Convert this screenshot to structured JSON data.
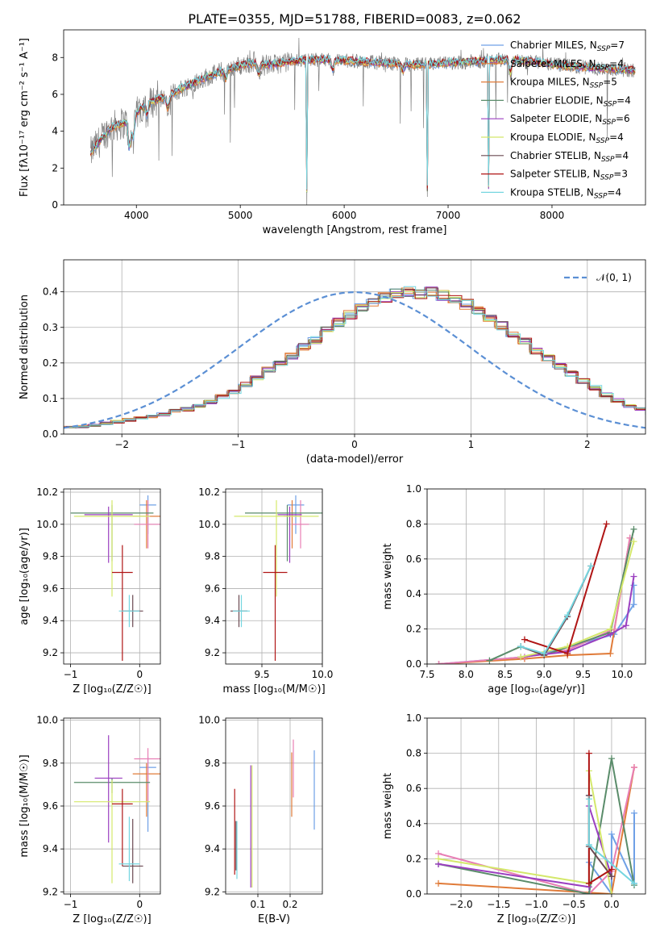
{
  "title": "PLATE=0355, MJD=51788, FIBERID=0083, z=0.062",
  "colors": {
    "Chabrier MILES": "#6fa0e6",
    "Salpeter MILES": "#e07b39",
    "Kroupa MILES": "#e07b39",
    "Chabrier ELODIE": "#5a8c6a",
    "Salpeter ELODIE": "#9b3fc0",
    "Kroupa ELODIE": "#d4e86b",
    "Chabrier STELIB": "#6b4a52",
    "Salpeter STELIB": "#b01515",
    "Kroupa STELIB": "#74d6e0",
    "data": "#808080",
    "gaussian": "#5b8fd4",
    "pink": "#e87fb5"
  },
  "chart_data": [
    {
      "type": "line",
      "panel": "spectrum",
      "title": "PLATE=0355, MJD=51788, FIBERID=0083, z=0.062",
      "xlabel": "wavelength [Angstrom, rest frame]",
      "ylabel": "Flux [fλ10⁻¹⁷ erg cm⁻² s⁻¹ A⁻¹]",
      "xlim": [
        3300,
        8900
      ],
      "ylim": [
        0,
        9.5
      ],
      "xticks": [
        "4000",
        "5000",
        "6000",
        "7000",
        "8000"
      ],
      "yticks": [
        "0",
        "2",
        "4",
        "6",
        "8"
      ],
      "legend": [
        "Chabrier MILES, N_SSP=7",
        "Salpeter MILES, N_SSP=4",
        "Kroupa MILES, N_SSP=5",
        "Chabrier ELODIE, N_SSP=4",
        "Salpeter ELODIE, N_SSP=6",
        "Kroupa ELODIE, N_SSP=4",
        "Chabrier STELIB, N_SSP=4",
        "Salpeter STELIB, N_SSP=3",
        "Kroupa STELIB, N_SSP=4"
      ],
      "legend_labels": [
        {
          "name": "Chabrier MILES, N",
          "sub": "SSP",
          "tail": "=7"
        },
        {
          "name": "Salpeter MILES, N",
          "sub": "SSP",
          "tail": "=4"
        },
        {
          "name": "Kroupa MILES, N",
          "sub": "SSP",
          "tail": "=5"
        },
        {
          "name": "Chabrier ELODIE, N",
          "sub": "SSP",
          "tail": "=4"
        },
        {
          "name": "Salpeter ELODIE, N",
          "sub": "SSP",
          "tail": "=6"
        },
        {
          "name": "Kroupa ELODIE, N",
          "sub": "SSP",
          "tail": "=4"
        },
        {
          "name": "Chabrier STELIB, N",
          "sub": "SSP",
          "tail": "=4"
        },
        {
          "name": "Salpeter STELIB, N",
          "sub": "SSP",
          "tail": "=3"
        },
        {
          "name": "Kroupa STELIB, N",
          "sub": "SSP",
          "tail": "=4"
        }
      ],
      "legend_position": "right",
      "continuum": {
        "x": [
          3560,
          3650,
          3750,
          3850,
          3950,
          4050,
          4150,
          4300,
          4500,
          4700,
          4900,
          5100,
          5300,
          5500,
          5800,
          6100,
          6400,
          6700,
          7000,
          7300,
          7600,
          7900,
          8200,
          8500,
          8800
        ],
        "y": [
          2.8,
          3.5,
          4.2,
          4.4,
          4.6,
          5.3,
          5.6,
          5.9,
          6.5,
          7.0,
          7.4,
          7.7,
          7.6,
          7.8,
          7.9,
          7.8,
          7.7,
          7.6,
          7.7,
          7.8,
          7.9,
          7.7,
          7.5,
          7.4,
          7.3
        ]
      },
      "absorption_features": [
        {
          "x": 3934,
          "depth": 1.6
        },
        {
          "x": 3969,
          "depth": 1.2
        },
        {
          "x": 4101,
          "depth": 0.6
        },
        {
          "x": 4304,
          "depth": 0.8
        },
        {
          "x": 4861,
          "depth": 0.5
        },
        {
          "x": 5175,
          "depth": 0.6
        },
        {
          "x": 5640,
          "depth": 7.8
        },
        {
          "x": 5890,
          "depth": 0.6
        },
        {
          "x": 6563,
          "depth": 0.4
        },
        {
          "x": 6800,
          "depth": 7.5
        },
        {
          "x": 7390,
          "depth": 7.6
        },
        {
          "x": 7600,
          "depth": 0.8
        }
      ]
    },
    {
      "type": "line",
      "panel": "residual-histogram",
      "xlabel": "(data-model)/error",
      "ylabel": "Normed distribution",
      "xlim": [
        -2.5,
        2.5
      ],
      "ylim": [
        0,
        0.49
      ],
      "xticks": [
        "−2",
        "−1",
        "0",
        "1",
        "2"
      ],
      "yticks": [
        "0.0",
        "0.1",
        "0.2",
        "0.3",
        "0.4"
      ],
      "legend": [
        "𝒩(0, 1)"
      ],
      "legend_position": "top-right",
      "bin_width": 0.1,
      "bin_start": -2.5,
      "base_values": [
        0.02,
        0.02,
        0.025,
        0.03,
        0.035,
        0.04,
        0.045,
        0.05,
        0.055,
        0.065,
        0.07,
        0.08,
        0.09,
        0.105,
        0.12,
        0.14,
        0.16,
        0.18,
        0.2,
        0.22,
        0.245,
        0.265,
        0.29,
        0.315,
        0.335,
        0.355,
        0.37,
        0.385,
        0.395,
        0.4,
        0.395,
        0.4,
        0.39,
        0.38,
        0.365,
        0.345,
        0.325,
        0.305,
        0.28,
        0.26,
        0.235,
        0.215,
        0.19,
        0.17,
        0.15,
        0.13,
        0.11,
        0.095,
        0.08,
        0.07,
        0.06,
        0.05,
        0.045,
        0.04,
        0.035,
        0.03,
        0.025,
        0.02,
        0.02,
        0.02
      ],
      "gaussian": {
        "mean": 0,
        "sigma": 1
      }
    },
    {
      "type": "scatter",
      "panel": "age-vs-Z",
      "xlabel": "Z [log₁₀(Z/Z☉)]",
      "ylabel": "age  [log₁₀(age/yr)]",
      "xlim": [
        -1.1,
        0.3
      ],
      "ylim": [
        9.13,
        10.22
      ],
      "xticks": [
        "−1",
        "0"
      ],
      "yticks": [
        "9.2",
        "9.4",
        "9.6",
        "9.8",
        "10.0",
        "10.2"
      ],
      "points": [
        {
          "x": 0.12,
          "y": 10.12,
          "xerr": 0.12,
          "yerr": [
            0.18,
            0.06
          ],
          "color": "#6fa0e6"
        },
        {
          "x": 0.1,
          "y": 10.05,
          "xerr": 0.2,
          "yerr": [
            0.2,
            0.1
          ],
          "color": "#e07b39"
        },
        {
          "x": 0.12,
          "y": 10.0,
          "xerr": 0.2,
          "yerr": [
            0.15,
            0.15
          ],
          "color": "#e87fb5"
        },
        {
          "x": -0.4,
          "y": 10.07,
          "xerr": 0.6,
          "yerr": [
            0.3,
            0.05
          ],
          "color": "#5a8c6a"
        },
        {
          "x": -0.45,
          "y": 10.06,
          "xerr": 0.35,
          "yerr": [
            0.3,
            0.05
          ],
          "color": "#9b3fc0"
        },
        {
          "x": -0.4,
          "y": 10.05,
          "xerr": 0.55,
          "yerr": [
            0.5,
            0.1
          ],
          "color": "#d4e86b"
        },
        {
          "x": -0.1,
          "y": 9.46,
          "xerr": 0.15,
          "yerr": [
            0.1,
            0.1
          ],
          "color": "#6b4a52"
        },
        {
          "x": -0.25,
          "y": 9.7,
          "xerr": 0.15,
          "yerr": [
            0.55,
            0.17
          ],
          "color": "#b01515"
        },
        {
          "x": -0.15,
          "y": 9.46,
          "xerr": 0.15,
          "yerr": [
            0.1,
            0.1
          ],
          "color": "#74d6e0"
        }
      ]
    },
    {
      "type": "scatter",
      "panel": "age-vs-mass",
      "xlabel": "mass [log₁₀(M/M☉)]",
      "ylabel": "",
      "xlim": [
        9.2,
        10.0
      ],
      "ylim": [
        9.13,
        10.22
      ],
      "xticks": [
        "9.5",
        "10.0"
      ],
      "yticks": [
        "9.2",
        "9.4",
        "9.6",
        "9.8",
        "10.0",
        "10.2"
      ],
      "points": [
        {
          "x": 9.78,
          "y": 10.12,
          "xerr": 0.07,
          "yerr": [
            0.18,
            0.06
          ],
          "color": "#6fa0e6"
        },
        {
          "x": 9.75,
          "y": 10.05,
          "xerr": 0.07,
          "yerr": [
            0.2,
            0.1
          ],
          "color": "#e07b39"
        },
        {
          "x": 9.82,
          "y": 10.0,
          "xerr": 0.07,
          "yerr": [
            0.15,
            0.15
          ],
          "color": "#e87fb5"
        },
        {
          "x": 9.71,
          "y": 10.07,
          "xerr": 0.35,
          "yerr": [
            0.3,
            0.05
          ],
          "color": "#5a8c6a"
        },
        {
          "x": 9.73,
          "y": 10.06,
          "xerr": 0.1,
          "yerr": [
            0.3,
            0.05
          ],
          "color": "#9b3fc0"
        },
        {
          "x": 9.62,
          "y": 10.05,
          "xerr": 0.35,
          "yerr": [
            0.5,
            0.1
          ],
          "color": "#d4e86b"
        },
        {
          "x": 9.31,
          "y": 9.46,
          "xerr": 0.07,
          "yerr": [
            0.1,
            0.1
          ],
          "color": "#6b4a52"
        },
        {
          "x": 9.61,
          "y": 9.7,
          "xerr": 0.1,
          "yerr": [
            0.55,
            0.17
          ],
          "color": "#b01515"
        },
        {
          "x": 9.33,
          "y": 9.46,
          "xerr": 0.07,
          "yerr": [
            0.1,
            0.1
          ],
          "color": "#74d6e0"
        }
      ]
    },
    {
      "type": "line",
      "panel": "mass-weight-vs-age",
      "xlabel": "age  [log₁₀(age/yr)]",
      "ylabel": "mass weight",
      "xlim": [
        7.5,
        10.3
      ],
      "ylim": [
        0,
        1.0
      ],
      "xticks": [
        "7.5",
        "8.0",
        "8.5",
        "9.0",
        "9.5",
        "10.0"
      ],
      "yticks": [
        "0.0",
        "0.2",
        "0.4",
        "0.6",
        "0.8",
        "1.0"
      ],
      "series": [
        {
          "color": "#6fa0e6",
          "x": [
            7.65,
            8.75,
            9.0,
            9.9,
            10.15,
            10.15
          ],
          "y": [
            0.0,
            0.04,
            0.06,
            0.17,
            0.34,
            0.45
          ]
        },
        {
          "color": "#e07b39",
          "x": [
            7.65,
            8.75,
            9.3,
            9.85,
            10.1
          ],
          "y": [
            0.0,
            0.03,
            0.05,
            0.06,
            0.72
          ]
        },
        {
          "color": "#e87fb5",
          "x": [
            7.65,
            8.75,
            9.3,
            9.9,
            10.1
          ],
          "y": [
            0.0,
            0.04,
            0.08,
            0.2,
            0.72
          ]
        },
        {
          "color": "#5a8c6a",
          "x": [
            8.3,
            8.7,
            9.0,
            9.85,
            10.15
          ],
          "y": [
            0.02,
            0.1,
            0.05,
            0.18,
            0.77
          ]
        },
        {
          "color": "#9b3fc0",
          "x": [
            8.7,
            9.3,
            9.85,
            10.05,
            10.15
          ],
          "y": [
            0.04,
            0.07,
            0.17,
            0.22,
            0.5
          ]
        },
        {
          "color": "#d4e86b",
          "x": [
            8.7,
            9.3,
            9.85,
            10.15
          ],
          "y": [
            0.04,
            0.1,
            0.2,
            0.7
          ]
        },
        {
          "color": "#6b4a52",
          "x": [
            8.7,
            9.0,
            9.3,
            9.6
          ],
          "y": [
            0.1,
            0.05,
            0.27,
            0.56
          ]
        },
        {
          "color": "#b01515",
          "x": [
            8.75,
            9.3,
            9.8
          ],
          "y": [
            0.14,
            0.06,
            0.8
          ]
        },
        {
          "color": "#74d6e0",
          "x": [
            8.7,
            9.0,
            9.3,
            9.6
          ],
          "y": [
            0.1,
            0.06,
            0.28,
            0.56
          ]
        }
      ]
    },
    {
      "type": "scatter",
      "panel": "mass-vs-Z",
      "xlabel": "Z [log₁₀(Z/Z☉)]",
      "ylabel": "mass [log₁₀(M/M☉)]",
      "xlim": [
        -1.1,
        0.3
      ],
      "ylim": [
        9.19,
        10.01
      ],
      "xticks": [
        "−1",
        "0"
      ],
      "yticks": [
        "9.2",
        "9.4",
        "9.6",
        "9.8",
        "10.0"
      ],
      "points": [
        {
          "x": 0.12,
          "y": 9.78,
          "xerr": 0.12,
          "yerr": [
            0.3,
            0.05
          ],
          "color": "#6fa0e6"
        },
        {
          "x": 0.1,
          "y": 9.75,
          "xerr": 0.2,
          "yerr": [
            0.2,
            0.05
          ],
          "color": "#e07b39"
        },
        {
          "x": 0.12,
          "y": 9.82,
          "xerr": 0.2,
          "yerr": [
            0.2,
            0.05
          ],
          "color": "#e87fb5"
        },
        {
          "x": -0.4,
          "y": 9.71,
          "xerr": 0.55,
          "yerr": [
            0.05,
            0.02
          ],
          "color": "#5a8c6a"
        },
        {
          "x": -0.45,
          "y": 9.73,
          "xerr": 0.2,
          "yerr": [
            0.3,
            0.2
          ],
          "color": "#9b3fc0"
        },
        {
          "x": -0.4,
          "y": 9.62,
          "xerr": 0.55,
          "yerr": [
            0.38,
            0.1
          ],
          "color": "#d4e86b"
        },
        {
          "x": -0.1,
          "y": 9.32,
          "xerr": 0.15,
          "yerr": [
            0.08,
            0.22
          ],
          "color": "#6b4a52"
        },
        {
          "x": -0.25,
          "y": 9.61,
          "xerr": 0.15,
          "yerr": [
            0.29,
            0.07
          ],
          "color": "#b01515"
        },
        {
          "x": -0.15,
          "y": 9.33,
          "xerr": 0.15,
          "yerr": [
            0.08,
            0.22
          ],
          "color": "#74d6e0"
        }
      ]
    },
    {
      "type": "scatter",
      "panel": "mass-vs-EBV",
      "xlabel": "E(B-V)",
      "ylabel": "",
      "xlim": [
        0.0,
        0.3
      ],
      "ylim": [
        9.19,
        10.01
      ],
      "xticks": [
        "0.1",
        "0.2"
      ],
      "yticks": [
        "9.2",
        "9.4",
        "9.6",
        "9.8",
        "10.0"
      ],
      "points": [
        {
          "x": 0.275,
          "y": 9.68,
          "yerr": [
            0.19,
            0.18
          ],
          "color": "#6fa0e6"
        },
        {
          "x": 0.205,
          "y": 9.74,
          "yerr": [
            0.19,
            0.11
          ],
          "color": "#e07b39"
        },
        {
          "x": 0.21,
          "y": 9.82,
          "yerr": [
            0.18,
            0.09
          ],
          "color": "#e87fb5"
        },
        {
          "x": 0.078,
          "y": 9.55,
          "yerr": [
            0.33,
            0.24
          ],
          "color": "#9b3fc0"
        },
        {
          "x": 0.082,
          "y": 9.5,
          "yerr": [
            0.28,
            0.29
          ],
          "color": "#d4e86b"
        },
        {
          "x": 0.032,
          "y": 9.42,
          "yerr": [
            0.12,
            0.11
          ],
          "color": "#6b4a52"
        },
        {
          "x": 0.028,
          "y": 9.5,
          "yerr": [
            0.22,
            0.18
          ],
          "color": "#b01515"
        },
        {
          "x": 0.035,
          "y": 9.38,
          "yerr": [
            0.12,
            0.15
          ],
          "color": "#74d6e0"
        }
      ]
    },
    {
      "type": "line",
      "panel": "mass-weight-vs-Z",
      "xlabel": "Z [log₁₀(Z/Z☉)]",
      "ylabel": "mass weight",
      "xlim": [
        -2.45,
        0.45
      ],
      "ylim": [
        0,
        1.0
      ],
      "xticks": [
        "−2.0",
        "−1.5",
        "−1.0",
        "−0.5",
        "0.0"
      ],
      "yticks": [
        "0.0",
        "0.2",
        "0.4",
        "0.6",
        "0.8",
        "1.0"
      ],
      "series": [
        {
          "color": "#6fa0e6",
          "x": [
            -0.3,
            -0.3,
            0.0,
            0.0,
            0.3,
            0.3
          ],
          "y": [
            0.56,
            0.18,
            0.0,
            0.34,
            0.06,
            0.46
          ]
        },
        {
          "color": "#e07b39",
          "x": [
            -2.3,
            0.0,
            0.3
          ],
          "y": [
            0.06,
            0.0,
            0.72
          ]
        },
        {
          "color": "#e87fb5",
          "x": [
            -2.3,
            -0.3,
            0.0,
            0.3
          ],
          "y": [
            0.23,
            0.0,
            0.13,
            0.72
          ]
        },
        {
          "color": "#5a8c6a",
          "x": [
            -2.3,
            -0.3,
            0.0,
            0.3
          ],
          "y": [
            0.17,
            0.0,
            0.77,
            0.05
          ]
        },
        {
          "color": "#9b3fc0",
          "x": [
            -2.3,
            -0.3,
            -0.3,
            0.0
          ],
          "y": [
            0.17,
            0.04,
            0.5,
            0.1
          ]
        },
        {
          "color": "#d4e86b",
          "x": [
            -2.3,
            -0.3,
            -0.3,
            0.0
          ],
          "y": [
            0.2,
            0.06,
            0.7,
            0.0
          ]
        },
        {
          "color": "#6b4a52",
          "x": [
            -0.3,
            -0.3,
            0.0
          ],
          "y": [
            0.56,
            0.27,
            0.1
          ]
        },
        {
          "color": "#b01515",
          "x": [
            -0.3,
            -0.3,
            0.0
          ],
          "y": [
            0.8,
            0.06,
            0.14
          ]
        },
        {
          "color": "#74d6e0",
          "x": [
            -0.3,
            -0.3,
            0.3
          ],
          "y": [
            0.54,
            0.28,
            0.06
          ]
        }
      ]
    }
  ]
}
